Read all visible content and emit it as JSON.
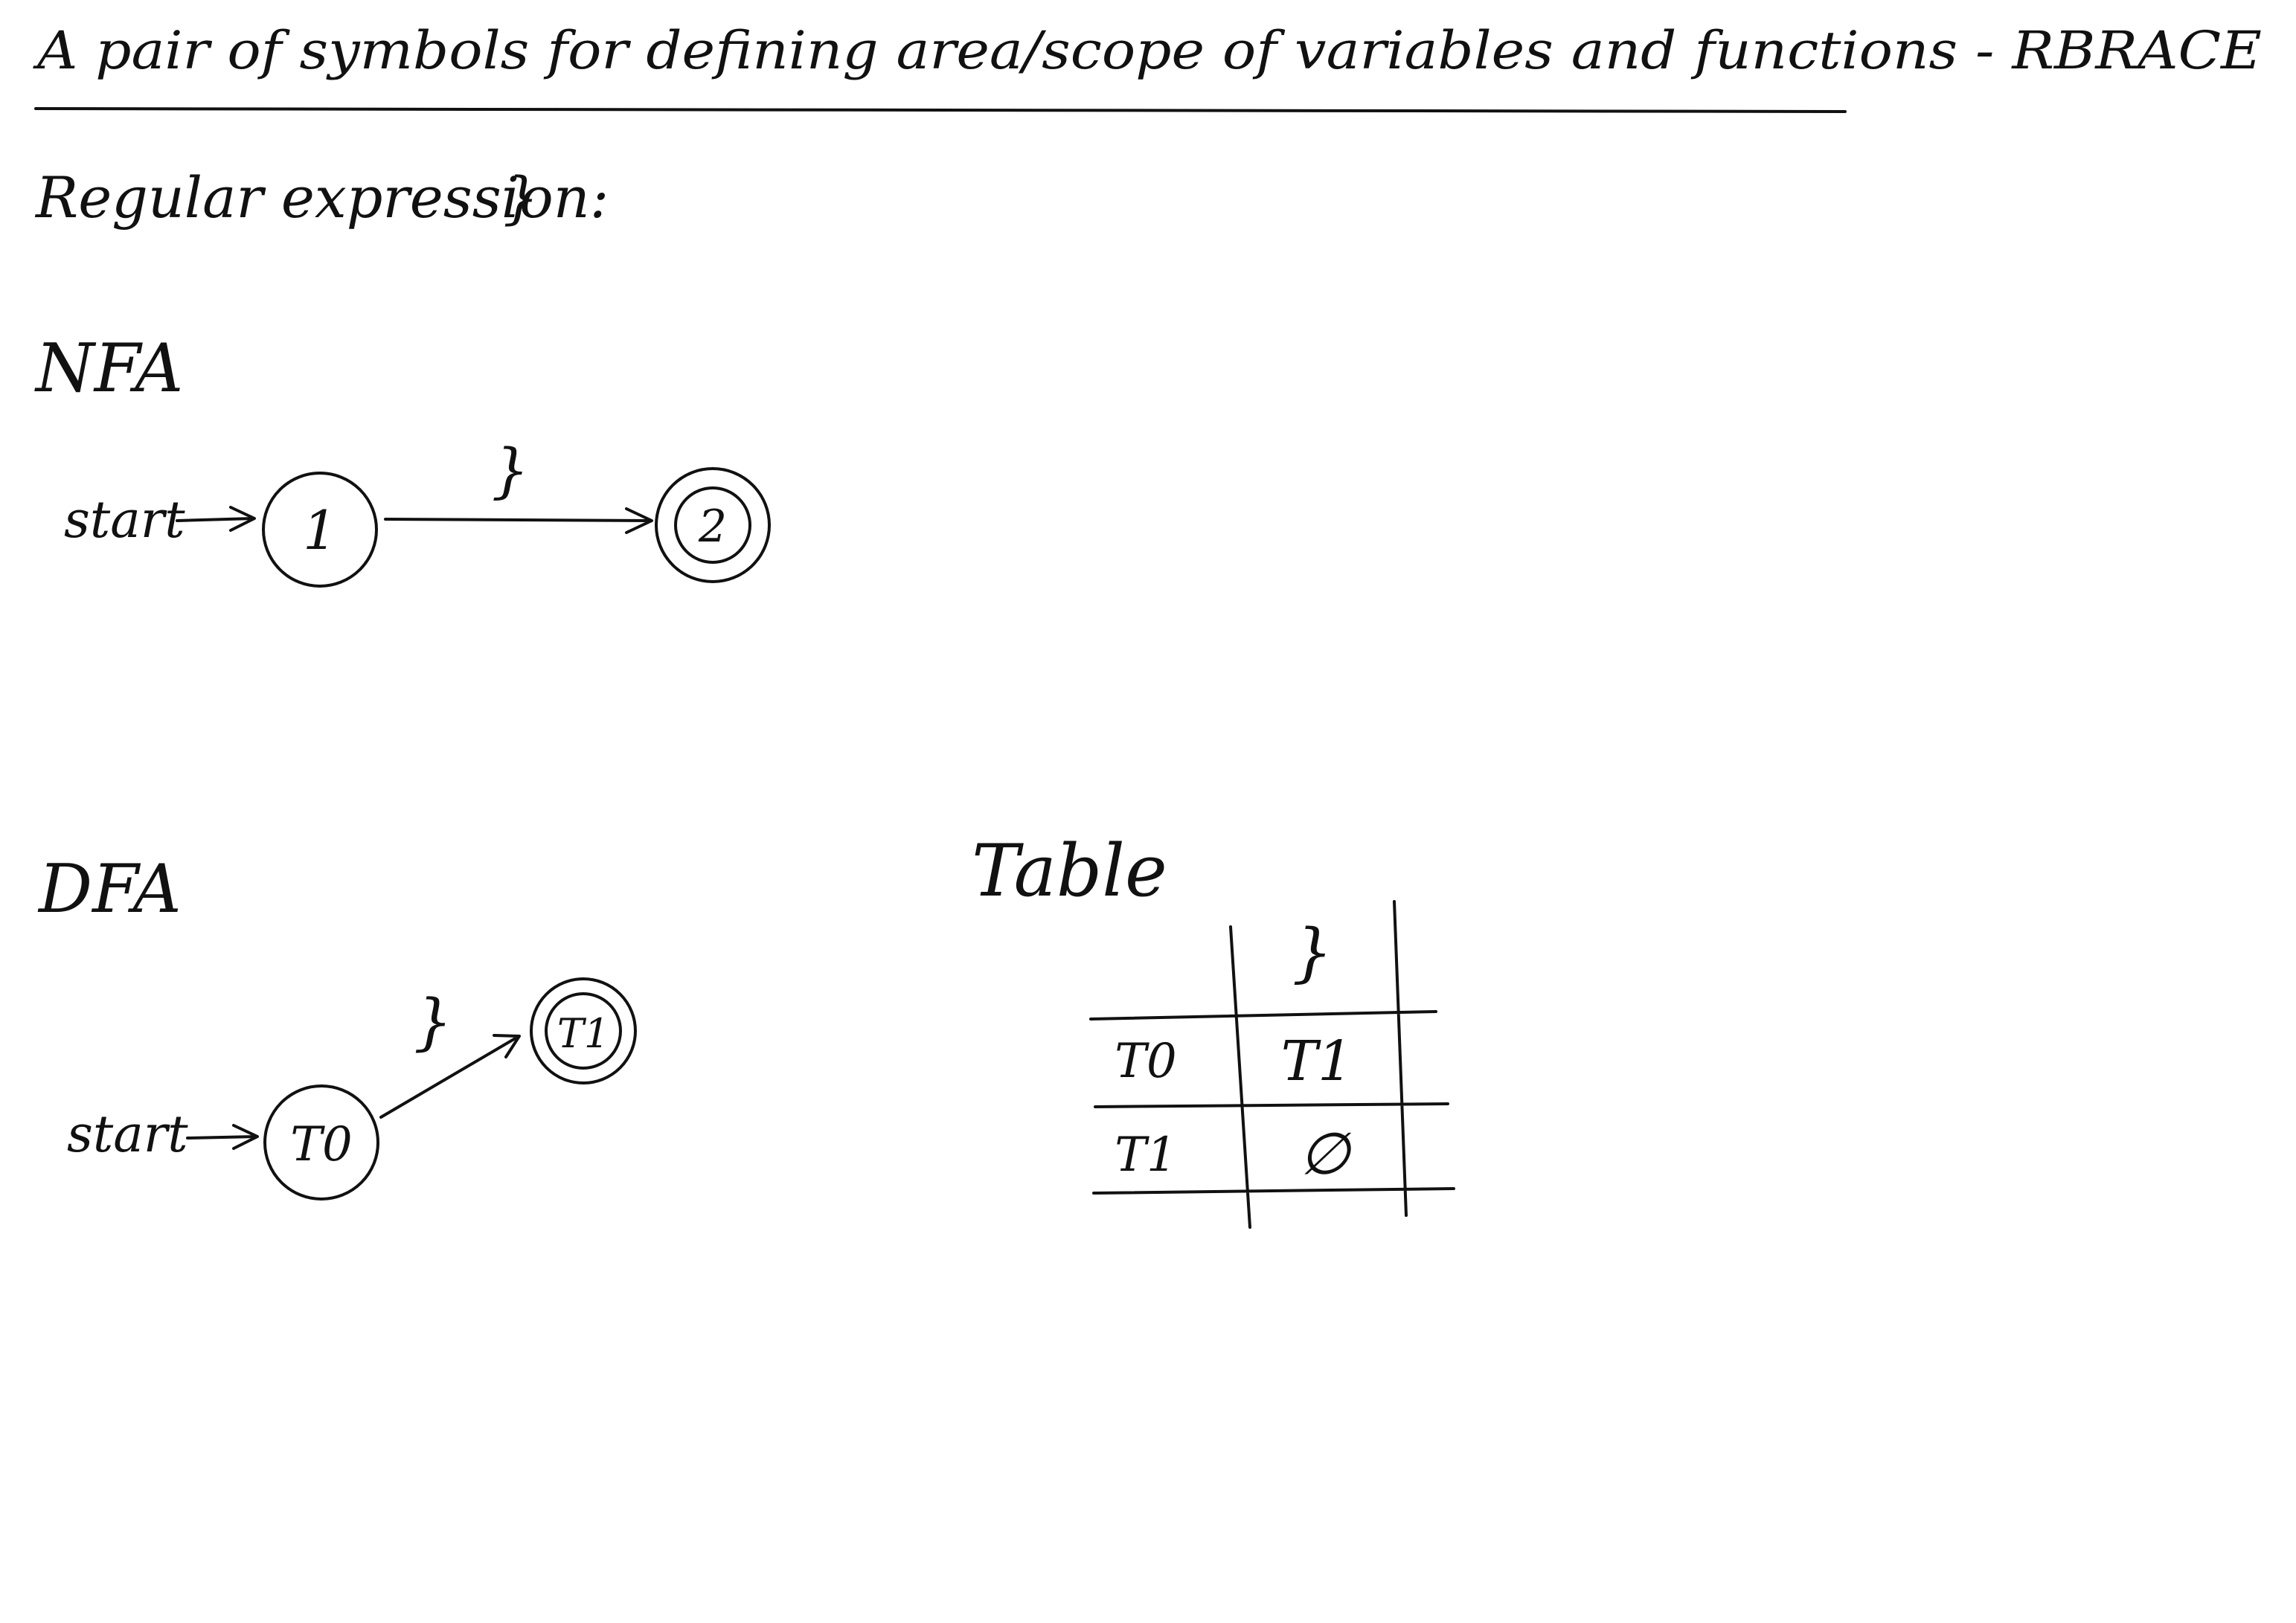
{
  "header": {
    "title": "A pair of symbols for defining area/scope of variables and functions - RBRACE"
  },
  "regex": {
    "label": "Regular expression:",
    "symbol": "}"
  },
  "nfa": {
    "heading": "NFA",
    "start_label": "start",
    "states": [
      {
        "id": "1",
        "accepting": false
      },
      {
        "id": "2",
        "accepting": true
      }
    ],
    "transitions": [
      {
        "from": "1",
        "to": "2",
        "symbol": "}"
      }
    ]
  },
  "dfa": {
    "heading": "DFA",
    "start_label": "start",
    "states": [
      {
        "id": "T0",
        "accepting": false
      },
      {
        "id": "T1",
        "accepting": true
      }
    ],
    "transitions": [
      {
        "from": "T0",
        "to": "T1",
        "symbol": "}"
      }
    ]
  },
  "table": {
    "heading": "Table",
    "column_headers": [
      "}"
    ],
    "rows": [
      {
        "state": "T0",
        "cells": [
          "T1"
        ]
      },
      {
        "state": "T1",
        "cells": [
          "∅"
        ]
      }
    ]
  }
}
